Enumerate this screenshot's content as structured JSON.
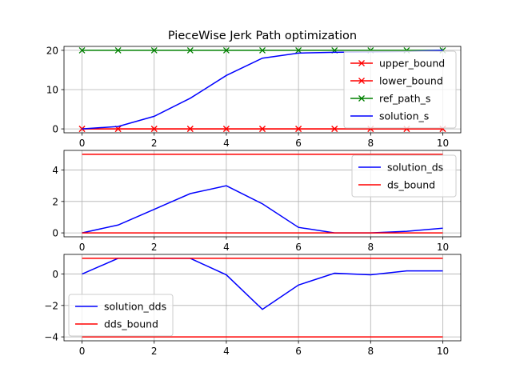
{
  "title": "PieceWise Jerk Path optimization",
  "chart_data": [
    {
      "type": "line",
      "x": [
        0,
        1,
        2,
        3,
        4,
        5,
        6,
        7,
        8,
        9,
        10
      ],
      "xlim": [
        -0.5,
        10.5
      ],
      "ylim": [
        -1,
        21
      ],
      "xticks": [
        0,
        2,
        4,
        6,
        8,
        10
      ],
      "yticks": [
        0,
        10,
        20
      ],
      "grid": true,
      "legend_position": "lower-right",
      "series": [
        {
          "name": "upper_bound",
          "color": "#ff0000",
          "marker": "x",
          "values": [
            0,
            0,
            0,
            0,
            0,
            0,
            0,
            0,
            0,
            0,
            0
          ]
        },
        {
          "name": "lower_bound",
          "color": "#ff0000",
          "marker": "x",
          "values": [
            0,
            0,
            0,
            0,
            0,
            0,
            0,
            0,
            0,
            0,
            0
          ]
        },
        {
          "name": "ref_path_s",
          "color": "#008000",
          "marker": "x",
          "values": [
            20,
            20,
            20,
            20,
            20,
            20,
            20,
            20,
            20,
            20,
            20
          ]
        },
        {
          "name": "solution_s",
          "color": "#0000ff",
          "marker": "",
          "values": [
            0,
            0.6,
            3.2,
            7.8,
            13.6,
            18,
            19.3,
            19.5,
            19.6,
            19.7,
            20
          ]
        }
      ]
    },
    {
      "type": "line",
      "x": [
        0,
        1,
        2,
        3,
        4,
        5,
        6,
        7,
        8,
        9,
        10
      ],
      "xlim": [
        -0.5,
        10.5
      ],
      "ylim": [
        -0.25,
        5.25
      ],
      "xticks": [
        0,
        2,
        4,
        6,
        8,
        10
      ],
      "yticks": [
        0,
        2,
        4
      ],
      "grid": true,
      "legend_position": "upper-right",
      "series": [
        {
          "name": "solution_ds",
          "color": "#0000ff",
          "values": [
            0,
            0.5,
            1.5,
            2.5,
            3.0,
            1.85,
            0.35,
            0,
            0,
            0.1,
            0.3
          ]
        },
        {
          "name": "ds_bound",
          "color": "#ff0000",
          "values": [
            5,
            5,
            5,
            5,
            5,
            5,
            5,
            5,
            5,
            5,
            5
          ],
          "lower": [
            0,
            0,
            0,
            0,
            0,
            0,
            0,
            0,
            0,
            0,
            0
          ]
        }
      ]
    },
    {
      "type": "line",
      "x": [
        0,
        1,
        2,
        3,
        4,
        5,
        6,
        7,
        8,
        9,
        10
      ],
      "xlim": [
        -0.5,
        10.5
      ],
      "ylim": [
        -4.25,
        1.25
      ],
      "xticks": [
        0,
        2,
        4,
        6,
        8,
        10
      ],
      "yticks": [
        -4,
        -2,
        0
      ],
      "grid": true,
      "legend_position": "lower-left",
      "series": [
        {
          "name": "solution_dds",
          "color": "#0000ff",
          "values": [
            0,
            1,
            1,
            1,
            -0.05,
            -2.25,
            -0.7,
            0.05,
            -0.05,
            0.2,
            0.2
          ]
        },
        {
          "name": "dds_bound",
          "color": "#ff0000",
          "values": [
            1,
            1,
            1,
            1,
            1,
            1,
            1,
            1,
            1,
            1,
            1
          ],
          "lower": [
            -4,
            -4,
            -4,
            -4,
            -4,
            -4,
            -4,
            -4,
            -4,
            -4,
            -4
          ]
        }
      ]
    }
  ]
}
